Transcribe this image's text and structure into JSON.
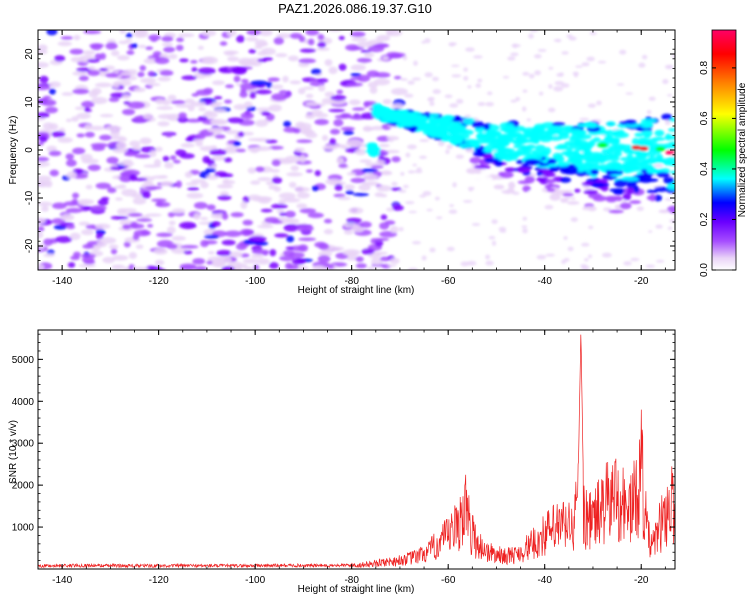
{
  "title": "PAZ1.2026.086.19.37.G10",
  "chart_data": [
    {
      "type": "heatmap",
      "name": "spectrogram",
      "xlabel": "Height of straight line (km)",
      "ylabel": "Frequency (Hz)",
      "xlim": [
        -145,
        -13
      ],
      "ylim": [
        -25,
        25
      ],
      "xticks": [
        -140,
        -120,
        -100,
        -80,
        -60,
        -40,
        -20
      ],
      "yticks": [
        -20,
        -10,
        0,
        10,
        20
      ],
      "colorbar": {
        "label": "Normalized spectral amplitude",
        "range": [
          0,
          0.95
        ],
        "ticks": [
          0.0,
          0.2,
          0.4,
          0.6,
          0.8
        ],
        "colormap": [
          "#ffffff",
          "#e9d3f7",
          "#a64dff",
          "#7a00ff",
          "#0000ff",
          "#00ffff",
          "#00ff00",
          "#ffff00",
          "#ff7f00",
          "#ff0000",
          "#ff0066"
        ]
      },
      "signal_track": {
        "description": "descending frequency ridge",
        "x": [
          -75,
          -65,
          -55,
          -45,
          -35,
          -25,
          -15
        ],
        "y": [
          8,
          5.5,
          3,
          1.5,
          0.5,
          0,
          0
        ]
      }
    },
    {
      "type": "line",
      "name": "snr",
      "xlabel": "Height of straight line (km)",
      "ylabel": "SNR (10 * v/v)",
      "xlim": [
        -145,
        -13
      ],
      "ylim": [
        0,
        5700
      ],
      "xticks": [
        -140,
        -120,
        -100,
        -80,
        -60,
        -40,
        -20
      ],
      "yticks": [
        1000,
        2000,
        3000,
        4000,
        5000
      ],
      "series": [
        {
          "name": "SNR",
          "color": "#ee2222",
          "x": [
            -145,
            -135,
            -125,
            -115,
            -105,
            -95,
            -85,
            -78,
            -74,
            -70,
            -67,
            -64,
            -62,
            -60,
            -58,
            -56.5,
            -55.5,
            -54,
            -52,
            -50,
            -48,
            -46,
            -44,
            -42,
            -40,
            -38,
            -36,
            -34,
            -33,
            -32.5,
            -32,
            -31,
            -29,
            -27,
            -25,
            -23,
            -21,
            -20,
            -19,
            -18,
            -16,
            -14,
            -13
          ],
          "y": [
            100,
            120,
            100,
            110,
            100,
            120,
            110,
            140,
            220,
            300,
            400,
            600,
            900,
            1100,
            1500,
            2250,
            1400,
            900,
            600,
            500,
            450,
            500,
            700,
            900,
            1200,
            1400,
            1500,
            1500,
            2500,
            5700,
            2200,
            1600,
            1900,
            2300,
            2600,
            2000,
            2400,
            3700,
            1600,
            700,
            1500,
            2300,
            2100
          ]
        }
      ]
    }
  ]
}
